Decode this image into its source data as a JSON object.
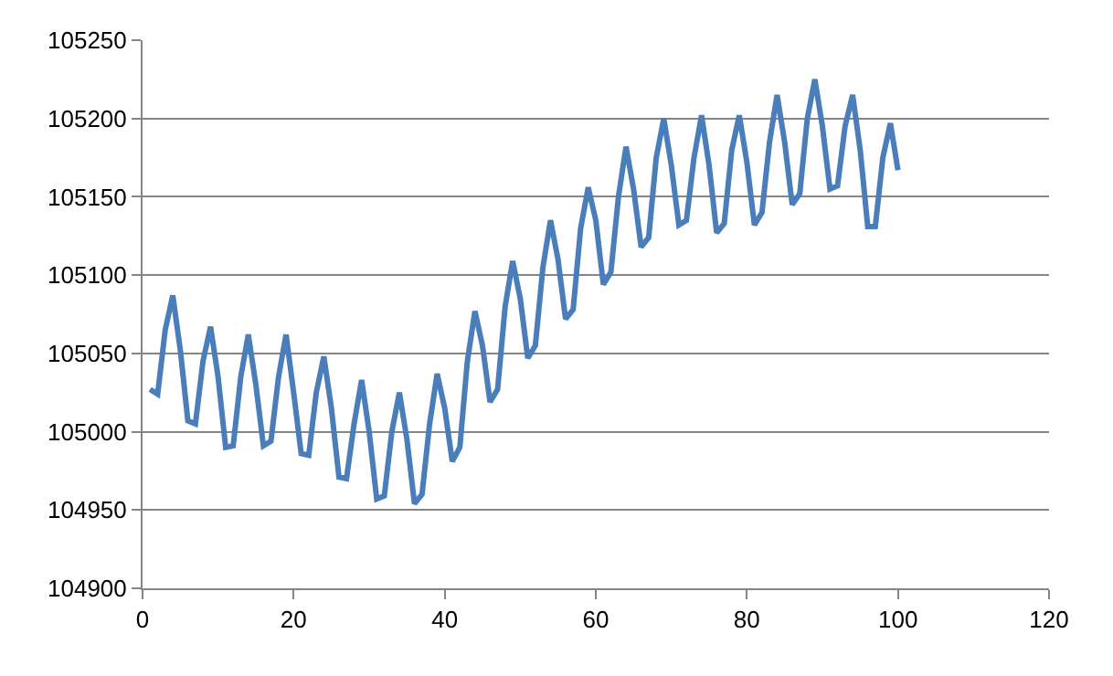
{
  "chart_data": {
    "type": "line",
    "x": [
      1,
      2,
      3,
      4,
      5,
      6,
      7,
      8,
      9,
      10,
      11,
      12,
      13,
      14,
      15,
      16,
      17,
      18,
      19,
      20,
      21,
      22,
      23,
      24,
      25,
      26,
      27,
      28,
      29,
      30,
      31,
      32,
      33,
      34,
      35,
      36,
      37,
      38,
      39,
      40,
      41,
      42,
      43,
      44,
      45,
      46,
      47,
      48,
      49,
      50,
      51,
      52,
      53,
      54,
      55,
      56,
      57,
      58,
      59,
      60,
      61,
      62,
      63,
      64,
      65,
      66,
      67,
      68,
      69,
      70,
      71,
      72,
      73,
      74,
      75,
      76,
      77,
      78,
      79,
      80,
      81,
      82,
      83,
      84,
      85,
      86,
      87,
      88,
      89,
      90,
      91,
      92,
      93,
      94,
      95,
      96,
      97,
      98,
      99,
      100
    ],
    "series": [
      {
        "color": "#4a7ebb",
        "values": [
          105027,
          105024,
          105065,
          105087,
          105052,
          105007,
          105005,
          105045,
          105067,
          105035,
          104990,
          104991,
          105035,
          105062,
          105030,
          104991,
          104994,
          105035,
          105062,
          105025,
          104986,
          104985,
          105025,
          105048,
          105015,
          104971,
          104970,
          105005,
          105033,
          105000,
          104957,
          104959,
          105000,
          105025,
          104995,
          104954,
          104960,
          105005,
          105037,
          105015,
          104981,
          104990,
          105045,
          105077,
          105055,
          105019,
          105027,
          105080,
          105109,
          105085,
          105047,
          105055,
          105105,
          105135,
          105110,
          105072,
          105078,
          105130,
          105156,
          105135,
          105094,
          105102,
          105150,
          105182,
          105155,
          105118,
          105124,
          105175,
          105200,
          105170,
          105132,
          105135,
          105175,
          105202,
          105170,
          105127,
          105133,
          105180,
          105202,
          105172,
          105132,
          105140,
          105185,
          105215,
          105185,
          105145,
          105152,
          105200,
          105225,
          105195,
          105155,
          105157,
          105195,
          105215,
          105180,
          105131,
          105131,
          105175,
          105197,
          105167
        ]
      }
    ],
    "xlim": [
      0,
      120
    ],
    "xticks": [
      0,
      20,
      40,
      60,
      80,
      100,
      120
    ],
    "ylim": [
      104900,
      105250
    ],
    "yticks": [
      104900,
      104950,
      105000,
      105050,
      105100,
      105150,
      105200,
      105250
    ],
    "grid": "y",
    "marker": "none",
    "line_style": "solid"
  }
}
